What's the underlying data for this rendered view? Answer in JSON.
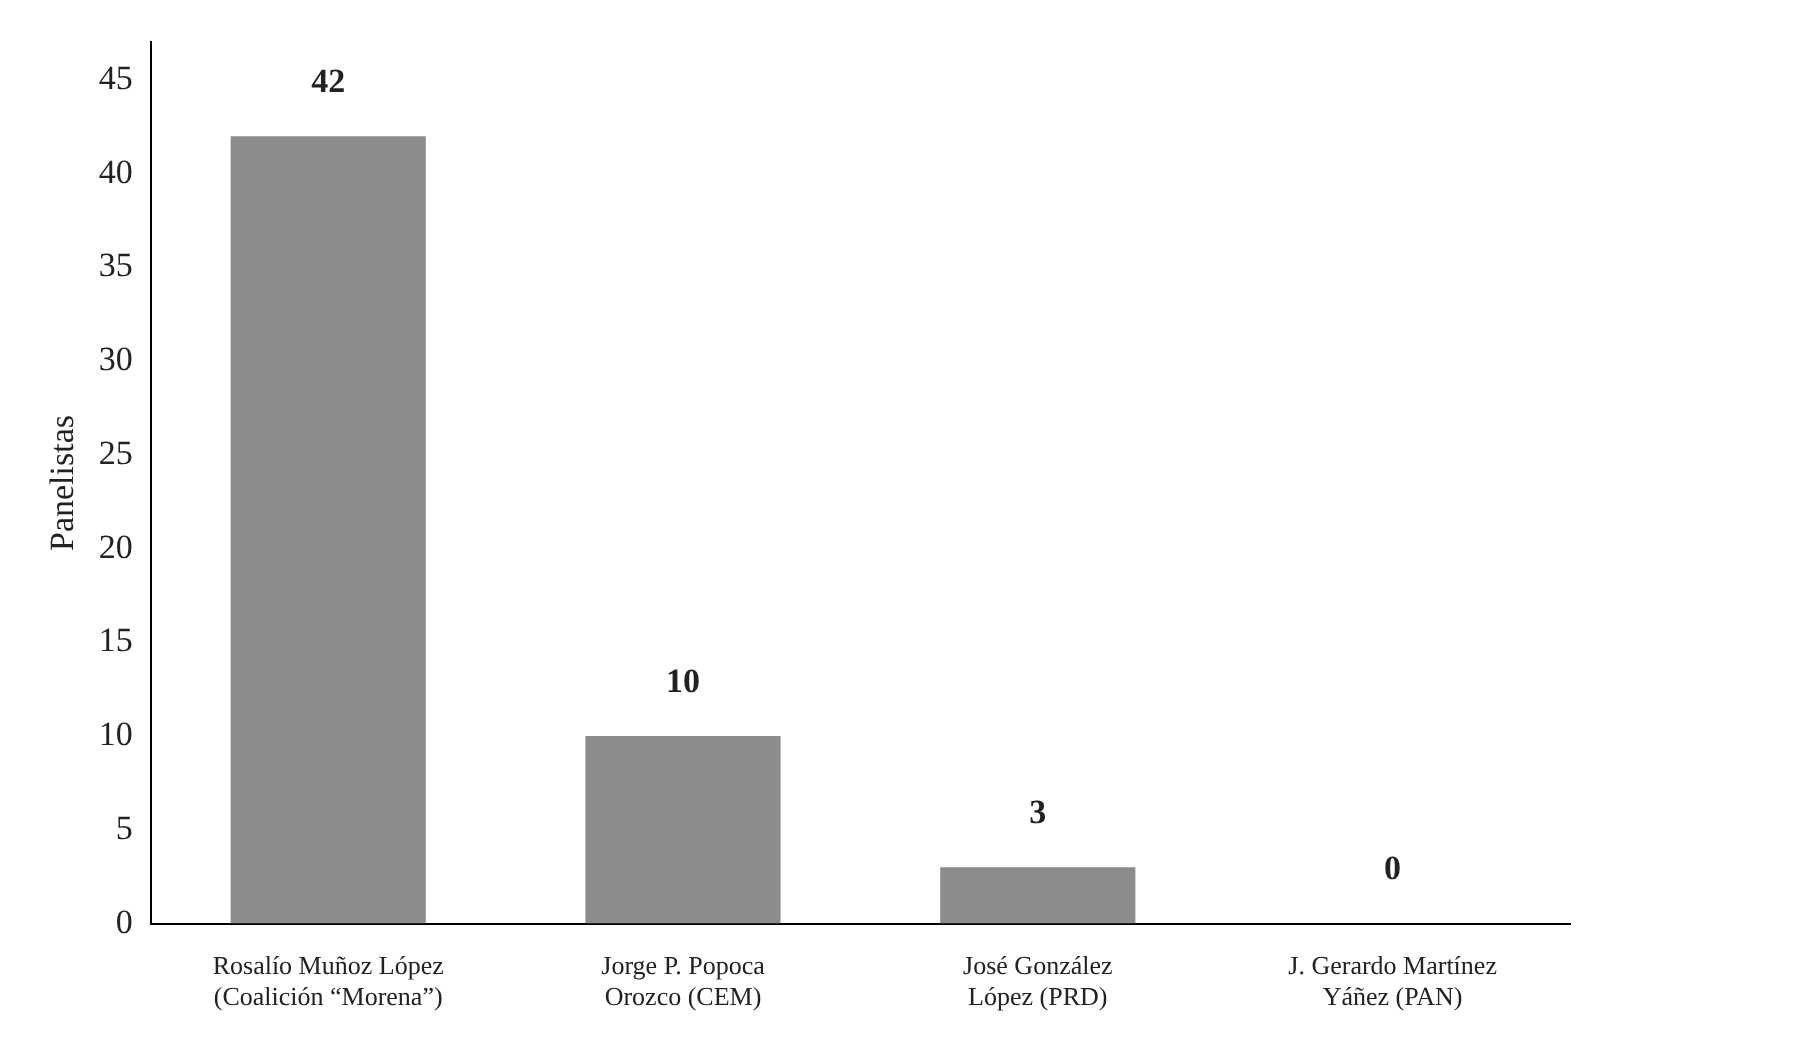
{
  "chart_data": {
    "type": "bar",
    "ylabel": "Panelistas",
    "categories": [
      "Rosalío Muñoz López\n(Coalición “Morena”)",
      "Jorge P. Popoca\nOrozco (CEM)",
      "José González\nLópez (PRD)",
      "J. Gerardo Martínez\nYáñez (PAN)"
    ],
    "values": [
      42,
      10,
      3,
      0
    ],
    "color": "#8c8c8c",
    "ylim": [
      0,
      47
    ],
    "yticks": [
      0,
      5,
      10,
      15,
      20,
      25,
      30,
      35,
      40,
      45
    ],
    "grid": false,
    "legend": false,
    "data_labels": true
  }
}
